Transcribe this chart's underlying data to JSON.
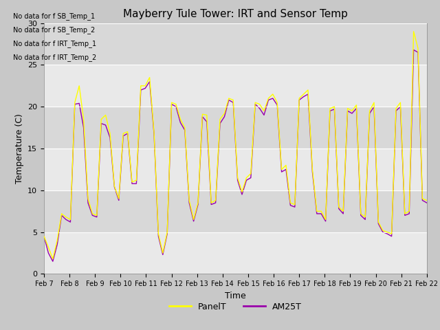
{
  "title": "Mayberry Tule Tower: IRT and Sensor Temp",
  "xlabel": "Time",
  "ylabel": "Temperature (C)",
  "ylim": [
    0,
    30
  ],
  "yticks": [
    0,
    5,
    10,
    15,
    20,
    25,
    30
  ],
  "fig_bg_color": "#c8c8c8",
  "plot_bg_color": "#d8d8d8",
  "panel_color": "#ffff00",
  "am25t_color": "#9900aa",
  "legend_labels": [
    "PanelT",
    "AM25T"
  ],
  "no_data_texts": [
    "No data for f SB_Temp_1",
    "No data for f SB_Temp_2",
    "No data for f IRT_Temp_1",
    "No data for f IRT_Temp_2"
  ],
  "xtick_labels": [
    "Feb 7",
    "Feb 8",
    "Feb 9",
    "Feb 10",
    "Feb 11",
    "Feb 12",
    "Feb 13",
    "Feb 14",
    "Feb 15",
    "Feb 16",
    "Feb 17",
    "Feb 18",
    "Feb 19",
    "Feb 20",
    "Feb 21",
    "Feb 22"
  ],
  "panel_t": [
    4.5,
    3.2,
    1.8,
    4.0,
    7.2,
    6.8,
    6.5,
    20.5,
    22.5,
    18.5,
    9.0,
    7.2,
    7.0,
    18.5,
    19.0,
    16.8,
    10.5,
    9.0,
    16.8,
    17.0,
    11.0,
    11.2,
    22.5,
    22.5,
    23.5,
    17.0,
    4.8,
    2.5,
    5.0,
    20.5,
    20.3,
    18.5,
    17.5,
    8.8,
    6.5,
    8.5,
    19.1,
    19.0,
    8.5,
    8.8,
    18.5,
    19.2,
    21.0,
    20.8,
    11.5,
    9.8,
    11.5,
    12.0,
    20.5,
    20.3,
    19.5,
    21.0,
    21.5,
    20.5,
    12.5,
    13.0,
    8.5,
    8.3,
    21.0,
    21.5,
    22.0,
    12.5,
    7.5,
    7.5,
    6.5,
    19.8,
    20.0,
    8.0,
    7.5,
    19.8,
    19.5,
    20.2,
    7.2,
    6.8,
    19.5,
    20.5,
    6.2,
    5.2,
    5.0,
    4.8,
    19.8,
    20.5,
    7.2,
    7.5,
    29.0,
    27.0,
    9.0,
    8.8
  ],
  "am25t": [
    4.5,
    2.5,
    1.5,
    3.5,
    7.0,
    6.5,
    6.2,
    20.3,
    20.4,
    17.5,
    8.5,
    7.0,
    6.8,
    18.0,
    17.8,
    16.3,
    10.4,
    8.8,
    16.5,
    16.8,
    10.8,
    10.8,
    22.0,
    22.2,
    23.0,
    16.8,
    4.5,
    2.3,
    4.8,
    20.3,
    20.0,
    18.1,
    17.2,
    8.5,
    6.3,
    8.3,
    18.8,
    18.2,
    8.3,
    8.5,
    18.0,
    18.8,
    20.8,
    20.5,
    11.2,
    9.5,
    11.2,
    11.5,
    20.3,
    19.8,
    19.0,
    20.8,
    21.0,
    20.2,
    12.2,
    12.5,
    8.2,
    8.0,
    20.8,
    21.2,
    21.5,
    12.2,
    7.2,
    7.2,
    6.3,
    19.5,
    19.7,
    7.8,
    7.2,
    19.5,
    19.2,
    19.8,
    7.0,
    6.5,
    19.2,
    20.0,
    6.0,
    5.0,
    4.8,
    4.5,
    19.5,
    20.0,
    7.0,
    7.2,
    26.8,
    26.5,
    8.8,
    8.5
  ]
}
